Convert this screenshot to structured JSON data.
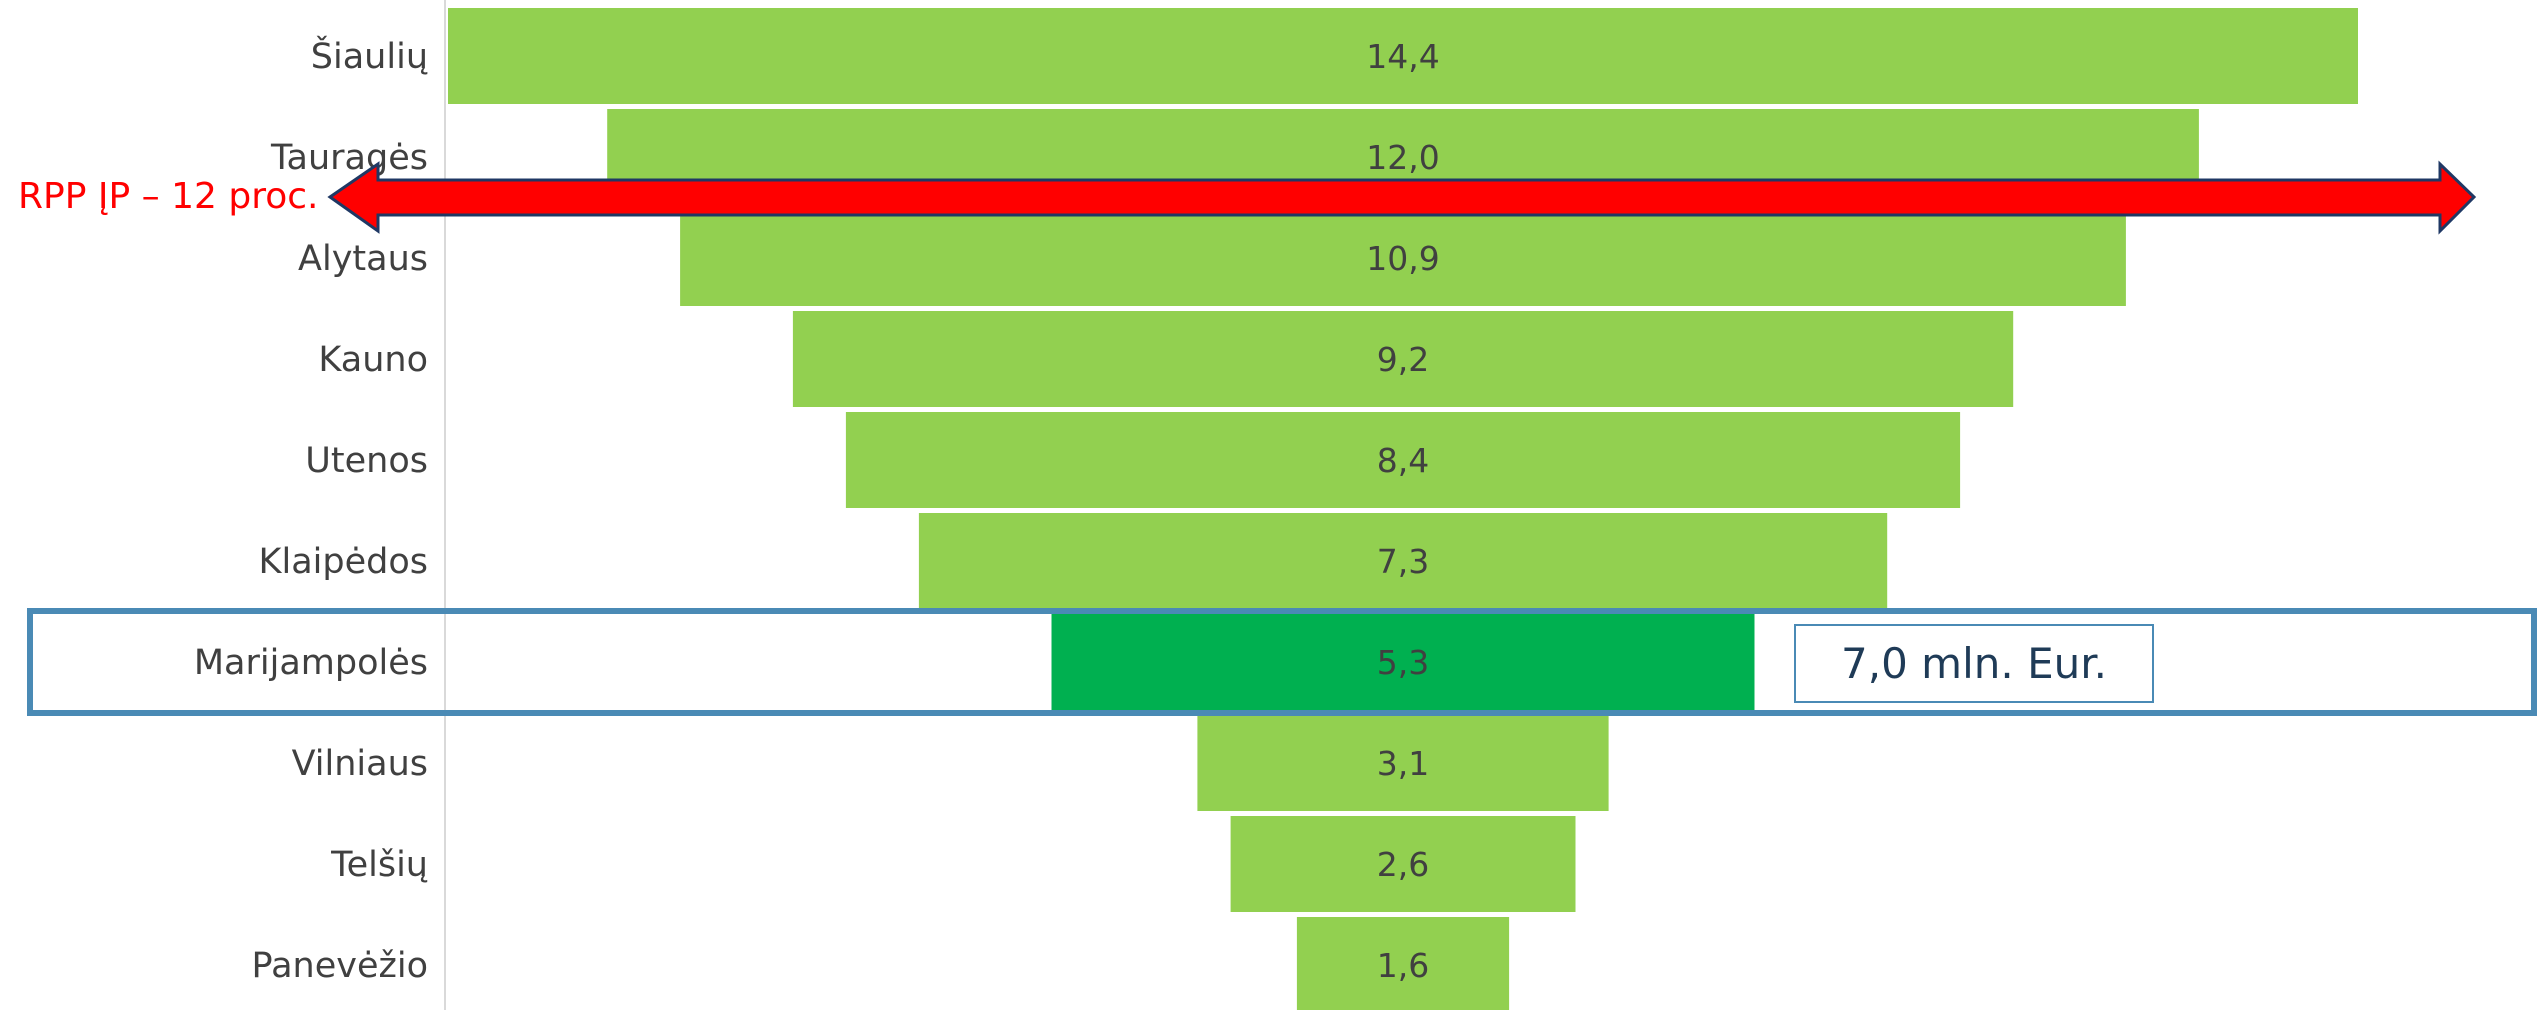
{
  "chart_data": {
    "type": "bar",
    "orientation": "horizontal-funnel",
    "categories": [
      "Šiaulių",
      "Tauragės",
      "Alytaus",
      "Kauno",
      "Utenos",
      "Klaipėdos",
      "Marijampolės",
      "Vilniaus",
      "Telšių",
      "Panevėžio"
    ],
    "values": [
      14.4,
      12.0,
      10.9,
      9.2,
      8.4,
      7.3,
      5.3,
      3.1,
      2.6,
      1.6
    ],
    "value_labels": [
      "14,4",
      "12,0",
      "10,9",
      "9,2",
      "8,4",
      "7,3",
      "5,3",
      "3,1",
      "2,6",
      "1,6"
    ],
    "highlight_category": "Marijampolės",
    "annotations": {
      "reference_line": {
        "label": "RPP ĮP – 12 proc.",
        "value": 12
      },
      "callout": {
        "text": "7,0 mln. Eur.",
        "category": "Marijampolės"
      }
    },
    "colors": {
      "bar": "#92d050",
      "highlight_bar": "#00b050",
      "arrow": "#ff0000",
      "arrow_outline": "#1f3864",
      "highlight_box": "#4a8ab5",
      "callout_border": "#4a8ab5"
    },
    "xlim": [
      0,
      14.4
    ],
    "grid": false,
    "legend": "none"
  }
}
